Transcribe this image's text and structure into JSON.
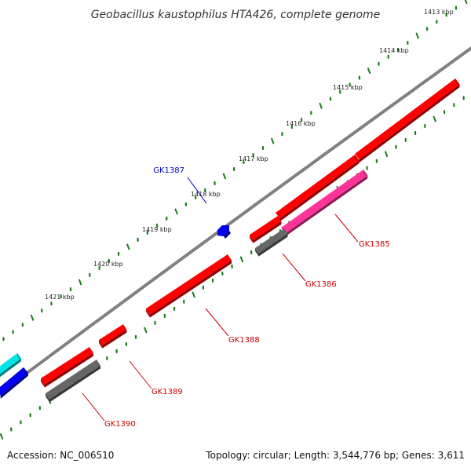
{
  "title": "Geobacillus kaustophilus HTA426, complete genome",
  "footer": {
    "accession": "Accession: NC_006510",
    "topology": "Topology: circular; Length: 3,544,776 bp; Genes: 3,611"
  },
  "colors": {
    "backbone": "#808080",
    "ticks": "#1a7a1a",
    "gene_red": "#ff0000",
    "gene_pink": "#ff3399",
    "gene_gray": "#666666",
    "gene_blue": "#0000ee",
    "gene_cyan": "#00e5e5",
    "label_red": "#cc0000",
    "label_blue": "#0000cc"
  },
  "kbp_labels": [
    "1413 kbp",
    "1414 kbp",
    "1415 kbp",
    "1416 kbp",
    "1417 kbp",
    "1418 kbp",
    "1419 kbp",
    "1420 kbp",
    "1421 kbp"
  ],
  "gene_labels": [
    {
      "id": "gk1385",
      "text": "GK1385"
    },
    {
      "id": "gk1386",
      "text": "GK1386"
    },
    {
      "id": "gk1387",
      "text": "GK1387"
    },
    {
      "id": "gk1388",
      "text": "GK1388"
    },
    {
      "id": "gk1389",
      "text": "GK1389"
    },
    {
      "id": "gk1390",
      "text": "GK1390"
    }
  ]
}
